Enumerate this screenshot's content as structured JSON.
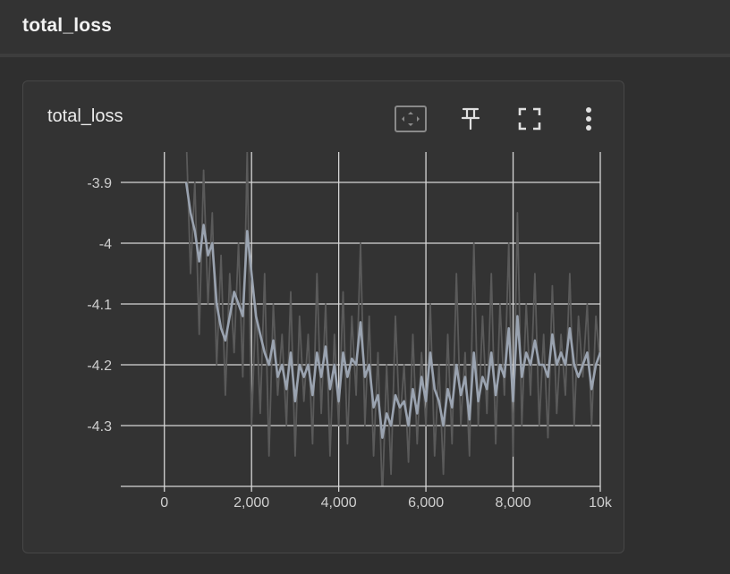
{
  "section": {
    "title": "total_loss"
  },
  "card": {
    "title": "total_loss",
    "toolbar": {
      "fit_icon": "fit-domain-icon",
      "pin_icon": "pin-icon",
      "fullscreen_icon": "fullscreen-icon",
      "more_icon": "more-vert-icon"
    }
  },
  "chart_data": {
    "type": "line",
    "title": "",
    "xlabel": "",
    "ylabel": "",
    "xlim": [
      -1000,
      10000
    ],
    "ylim": [
      -4.4,
      -3.85
    ],
    "x_ticks": [
      0,
      2000,
      4000,
      6000,
      8000,
      10000
    ],
    "x_tick_labels": [
      "0",
      "2,000",
      "4,000",
      "6,000",
      "8,000",
      "10k"
    ],
    "y_ticks": [
      -3.9,
      -4.0,
      -4.1,
      -4.2,
      -4.3
    ],
    "y_tick_labels": [
      "-3.9",
      "-4",
      "-4.1",
      "-4.2",
      "-4.3"
    ],
    "grid": true,
    "series": [
      {
        "role": "raw",
        "color": "#5a5a5a",
        "x": [
          500,
          600,
          700,
          800,
          900,
          1000,
          1100,
          1200,
          1300,
          1400,
          1500,
          1600,
          1700,
          1800,
          1900,
          2000,
          2100,
          2200,
          2300,
          2400,
          2500,
          2600,
          2700,
          2800,
          2900,
          3000,
          3100,
          3200,
          3300,
          3400,
          3500,
          3600,
          3700,
          3800,
          3900,
          4000,
          4100,
          4200,
          4300,
          4400,
          4500,
          4600,
          4700,
          4800,
          4900,
          5000,
          5100,
          5200,
          5300,
          5400,
          5500,
          5600,
          5700,
          5800,
          5900,
          6000,
          6100,
          6200,
          6300,
          6400,
          6500,
          6600,
          6700,
          6800,
          6900,
          7000,
          7100,
          7200,
          7300,
          7400,
          7500,
          7600,
          7700,
          7800,
          7900,
          8000,
          8100,
          8200,
          8300,
          8400,
          8500,
          8600,
          8700,
          8800,
          8900,
          9000,
          9100,
          9200,
          9300,
          9400,
          9500,
          9600,
          9700,
          9800,
          9900,
          10000
        ],
        "y": [
          -3.82,
          -4.05,
          -3.9,
          -4.15,
          -3.88,
          -4.1,
          -3.95,
          -4.2,
          -4.02,
          -4.25,
          -4.05,
          -4.18,
          -4.0,
          -4.22,
          -3.85,
          -4.3,
          -4.1,
          -4.28,
          -4.05,
          -4.35,
          -4.1,
          -4.25,
          -4.15,
          -4.3,
          -4.08,
          -4.35,
          -4.12,
          -4.26,
          -4.15,
          -4.33,
          -4.05,
          -4.28,
          -4.1,
          -4.35,
          -4.15,
          -4.3,
          -4.08,
          -4.33,
          -4.12,
          -4.25,
          -4.0,
          -4.3,
          -4.12,
          -4.35,
          -4.18,
          -4.42,
          -4.2,
          -4.38,
          -4.12,
          -4.3,
          -4.2,
          -4.36,
          -4.15,
          -4.33,
          -4.18,
          -4.3,
          -4.1,
          -4.35,
          -4.2,
          -4.38,
          -4.15,
          -4.33,
          -4.05,
          -4.3,
          -4.18,
          -4.35,
          -4.0,
          -4.3,
          -4.12,
          -4.28,
          -4.05,
          -4.33,
          -4.1,
          -4.25,
          -4.0,
          -4.35,
          -3.95,
          -4.3,
          -4.1,
          -4.25,
          -4.05,
          -4.3,
          -4.15,
          -4.32,
          -4.07,
          -4.28,
          -4.15,
          -4.25,
          -4.05,
          -4.3,
          -4.12,
          -4.22,
          -4.1,
          -4.3,
          -4.12,
          -4.2
        ]
      },
      {
        "role": "smoothed",
        "color": "#9aa3b0",
        "x": [
          500,
          600,
          700,
          800,
          900,
          1000,
          1100,
          1200,
          1300,
          1400,
          1500,
          1600,
          1700,
          1800,
          1900,
          2000,
          2100,
          2200,
          2300,
          2400,
          2500,
          2600,
          2700,
          2800,
          2900,
          3000,
          3100,
          3200,
          3300,
          3400,
          3500,
          3600,
          3700,
          3800,
          3900,
          4000,
          4100,
          4200,
          4300,
          4400,
          4500,
          4600,
          4700,
          4800,
          4900,
          5000,
          5100,
          5200,
          5300,
          5400,
          5500,
          5600,
          5700,
          5800,
          5900,
          6000,
          6100,
          6200,
          6300,
          6400,
          6500,
          6600,
          6700,
          6800,
          6900,
          7000,
          7100,
          7200,
          7300,
          7400,
          7500,
          7600,
          7700,
          7800,
          7900,
          8000,
          8100,
          8200,
          8300,
          8400,
          8500,
          8600,
          8700,
          8800,
          8900,
          9000,
          9100,
          9200,
          9300,
          9400,
          9500,
          9600,
          9700,
          9800,
          9900,
          10000
        ],
        "y": [
          -3.9,
          -3.95,
          -3.98,
          -4.03,
          -3.97,
          -4.02,
          -4.0,
          -4.1,
          -4.14,
          -4.16,
          -4.12,
          -4.08,
          -4.1,
          -4.12,
          -3.98,
          -4.05,
          -4.12,
          -4.15,
          -4.18,
          -4.2,
          -4.16,
          -4.22,
          -4.2,
          -4.24,
          -4.18,
          -4.26,
          -4.2,
          -4.22,
          -4.2,
          -4.25,
          -4.18,
          -4.22,
          -4.17,
          -4.24,
          -4.2,
          -4.26,
          -4.18,
          -4.22,
          -4.19,
          -4.2,
          -4.13,
          -4.22,
          -4.2,
          -4.27,
          -4.25,
          -4.32,
          -4.28,
          -4.3,
          -4.25,
          -4.27,
          -4.26,
          -4.3,
          -4.24,
          -4.28,
          -4.22,
          -4.26,
          -4.18,
          -4.24,
          -4.26,
          -4.3,
          -4.24,
          -4.27,
          -4.2,
          -4.25,
          -4.22,
          -4.29,
          -4.18,
          -4.26,
          -4.22,
          -4.24,
          -4.18,
          -4.25,
          -4.2,
          -4.22,
          -4.14,
          -4.26,
          -4.12,
          -4.22,
          -4.18,
          -4.2,
          -4.16,
          -4.2,
          -4.2,
          -4.22,
          -4.15,
          -4.2,
          -4.18,
          -4.2,
          -4.14,
          -4.2,
          -4.22,
          -4.2,
          -4.18,
          -4.24,
          -4.2,
          -4.18
        ]
      }
    ]
  }
}
